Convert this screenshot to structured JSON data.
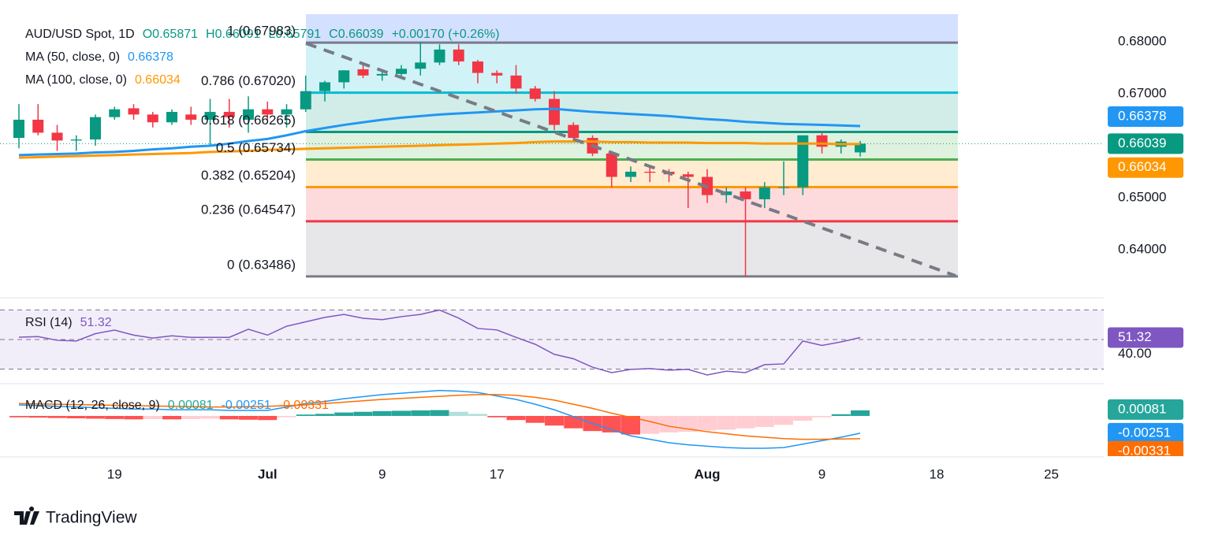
{
  "chart_data": {
    "type": "candlestick",
    "symbol": "AUD/USD Spot, 1D",
    "ohlc_header": {
      "o_label": "O",
      "open": "0.65871",
      "h_label": "H",
      "high": "0.66091",
      "l_label": "L",
      "low": "0.65791",
      "c_label": "C",
      "close": 0.66039,
      "change": "+0.00170 (+0.26%)"
    },
    "colors": {
      "up": "#089981",
      "down": "#f23645"
    },
    "xlim": [
      -0.99,
      56.74
    ],
    "xticks": [
      {
        "value": 5,
        "label": "19"
      },
      {
        "value": 13,
        "label": "Jul"
      },
      {
        "value": 19,
        "label": "9"
      },
      {
        "value": 25,
        "label": "17"
      },
      {
        "value": 36,
        "label": "Aug"
      },
      {
        "value": 42,
        "label": "9"
      },
      {
        "value": 48,
        "label": "18"
      },
      {
        "value": 54,
        "label": "25"
      }
    ],
    "ylim": [
      0.6312,
      0.6853
    ],
    "yticks": [
      {
        "value": 0.68,
        "label": "0.68000"
      },
      {
        "value": 0.67,
        "label": "0.67000"
      },
      {
        "value": 0.65,
        "label": "0.65000"
      },
      {
        "value": 0.64,
        "label": "0.64000"
      }
    ],
    "open": [
      0.6615,
      0.665,
      0.6625,
      0.661,
      0.6612,
      0.6655,
      0.6672,
      0.666,
      0.6645,
      0.666,
      0.665,
      0.6665,
      0.665,
      0.667,
      0.666,
      0.667,
      0.6705,
      0.6722,
      0.6747,
      0.6735,
      0.6738,
      0.6748,
      0.676,
      0.6785,
      0.6762,
      0.674,
      0.6735,
      0.671,
      0.669,
      0.664,
      0.6615,
      0.6585,
      0.654,
      0.655,
      0.655,
      0.6545,
      0.654,
      0.6505,
      0.6512,
      0.6497,
      0.652,
      0.652,
      0.662,
      0.6598,
      0.65871
    ],
    "high": [
      0.668,
      0.668,
      0.664,
      0.662,
      0.666,
      0.6675,
      0.668,
      0.6665,
      0.667,
      0.6675,
      0.669,
      0.669,
      0.6695,
      0.6685,
      0.668,
      0.6735,
      0.6725,
      0.6745,
      0.676,
      0.6745,
      0.6755,
      0.68,
      0.6795,
      0.6795,
      0.6765,
      0.6745,
      0.6755,
      0.6715,
      0.6705,
      0.6645,
      0.662,
      0.659,
      0.656,
      0.656,
      0.6555,
      0.655,
      0.6555,
      0.652,
      0.652,
      0.653,
      0.657,
      0.662,
      0.6625,
      0.6612,
      0.66091
    ],
    "low": [
      0.6595,
      0.662,
      0.659,
      0.659,
      0.66,
      0.665,
      0.665,
      0.6635,
      0.664,
      0.664,
      0.66,
      0.6635,
      0.6625,
      0.665,
      0.6635,
      0.6665,
      0.6685,
      0.671,
      0.673,
      0.6725,
      0.673,
      0.6735,
      0.6755,
      0.6755,
      0.672,
      0.672,
      0.67,
      0.6685,
      0.663,
      0.661,
      0.658,
      0.652,
      0.653,
      0.653,
      0.653,
      0.648,
      0.649,
      0.649,
      0.6349,
      0.648,
      0.6505,
      0.6505,
      0.6585,
      0.6585,
      0.65791
    ],
    "close": [
      0.665,
      0.6625,
      0.661,
      0.6612,
      0.6655,
      0.667,
      0.666,
      0.6645,
      0.6665,
      0.665,
      0.6665,
      0.6655,
      0.667,
      0.666,
      0.667,
      0.6705,
      0.6722,
      0.6745,
      0.6735,
      0.6738,
      0.6748,
      0.676,
      0.6785,
      0.6762,
      0.674,
      0.6735,
      0.671,
      0.669,
      0.664,
      0.6615,
      0.6585,
      0.654,
      0.655,
      0.6548,
      0.6545,
      0.654,
      0.6505,
      0.6512,
      0.6497,
      0.652,
      0.652,
      0.662,
      0.6598,
      0.6608,
      0.66039
    ],
    "series": [
      {
        "name": "MA (50, close, 0)",
        "color": "#2196f3",
        "values": [
          0.6582,
          0.6583,
          0.6584,
          0.6585,
          0.6587,
          0.6588,
          0.659,
          0.6593,
          0.6595,
          0.6598,
          0.66,
          0.6604,
          0.6609,
          0.6613,
          0.662,
          0.6628,
          0.6634,
          0.664,
          0.6645,
          0.665,
          0.6654,
          0.6657,
          0.666,
          0.6662,
          0.6664,
          0.6666,
          0.6668,
          0.667,
          0.6671,
          0.6668,
          0.6665,
          0.6663,
          0.6661,
          0.6659,
          0.6657,
          0.6654,
          0.6651,
          0.6649,
          0.6646,
          0.6644,
          0.6642,
          0.6641,
          0.664,
          0.6639,
          0.66378
        ]
      },
      {
        "name": "MA (100, close, 0)",
        "color": "#ff9800",
        "values": [
          0.6577,
          0.6578,
          0.6579,
          0.658,
          0.6581,
          0.6582,
          0.6583,
          0.6584,
          0.6585,
          0.6586,
          0.6588,
          0.6589,
          0.659,
          0.6592,
          0.6593,
          0.6594,
          0.6595,
          0.6596,
          0.6597,
          0.6598,
          0.6599,
          0.66,
          0.6601,
          0.6602,
          0.6603,
          0.6604,
          0.6605,
          0.6607,
          0.6608,
          0.6608,
          0.6608,
          0.6607,
          0.6607,
          0.6606,
          0.6606,
          0.6606,
          0.6605,
          0.6605,
          0.6605,
          0.6604,
          0.6604,
          0.6604,
          0.6604,
          0.6603,
          0.66034
        ]
      }
    ],
    "fib": [
      {
        "label": "1 (0.67983)",
        "value": 0.67983,
        "color": "#787b86"
      },
      {
        "label": "0.786 (0.67020)",
        "value": 0.6702,
        "color": "#00bcd4"
      },
      {
        "label": "0.618 (0.66265)",
        "value": 0.66265,
        "color": "#089981"
      },
      {
        "label": "0.5 (0.65734)",
        "value": 0.65734,
        "color": "#4caf50"
      },
      {
        "label": "0.382 (0.65204)",
        "value": 0.65204,
        "color": "#ff9800"
      },
      {
        "label": "0.236 (0.64547)",
        "value": 0.64547,
        "color": "#f23645"
      },
      {
        "label": "0 (0.63486)",
        "value": 0.63486,
        "color": "#787b86"
      }
    ],
    "rsi": {
      "name": "RSI (14)",
      "color": "#7e57c2",
      "ylim": [
        21.2,
        77.2
      ],
      "levels": [
        70,
        50,
        30
      ],
      "yticks": [
        {
          "value": 40,
          "label": "40.00"
        }
      ],
      "values": [
        51.6,
        52,
        49.5,
        49,
        54,
        56.4,
        53,
        51,
        52.5,
        51.5,
        51.5,
        51.5,
        57,
        53,
        59,
        62,
        65,
        67,
        64.4,
        63.5,
        65.5,
        67,
        70,
        64.5,
        57.5,
        56.5,
        51.5,
        46.8,
        40,
        37,
        31.3,
        27.6,
        29.8,
        30.3,
        29.3,
        29.8,
        26,
        28.6,
        27.6,
        33,
        33.5,
        49,
        46,
        48.4,
        51.32
      ]
    },
    "macd": {
      "name": "MACD (12, 26, close, 9)",
      "ylim": [
        -0.00573,
        0.00435
      ],
      "hist_colors": {
        "up_grow": "#26a69a",
        "up_fall": "#b2dfdb",
        "down_grow": "#ff5252",
        "down_fall": "#ffcdd2"
      },
      "histogram": [
        -0.0002,
        -0.00025,
        -0.0003,
        -0.00035,
        -0.0004,
        -0.00045,
        -0.0005,
        -0.00045,
        -0.0005,
        -0.00045,
        -0.0004,
        -0.0005,
        -0.00055,
        -0.0006,
        -0.0002,
        0.0002,
        0.0003,
        0.0005,
        0.0006,
        0.0007,
        0.00075,
        0.0008,
        0.00085,
        0.0006,
        0.0003,
        -0.0002,
        -0.0006,
        -0.001,
        -0.0014,
        -0.0018,
        -0.0022,
        -0.0024,
        -0.0027,
        -0.0026,
        -0.0024,
        -0.0023,
        -0.0021,
        -0.002,
        -0.0018,
        -0.0016,
        -0.0013,
        -0.0007,
        -0.0002,
        0.00025,
        0.00081
      ],
      "series": [
        {
          "color": "#2196f3",
          "values": [
            0.0016,
            0.0015,
            0.0014,
            0.0013,
            0.0012,
            0.0011,
            0.001,
            0.001,
            0.0009,
            0.0009,
            0.0009,
            0.0008,
            0.0008,
            0.0008,
            0.0013,
            0.0018,
            0.0021,
            0.0025,
            0.0028,
            0.0031,
            0.0033,
            0.0035,
            0.0037,
            0.0036,
            0.0034,
            0.0029,
            0.0024,
            0.0017,
            0.0009,
            -0.0001,
            -0.0011,
            -0.002,
            -0.0029,
            -0.0034,
            -0.0039,
            -0.0042,
            -0.0044,
            -0.0046,
            -0.0047,
            -0.0047,
            -0.0046,
            -0.0041,
            -0.0036,
            -0.0031,
            -0.00251
          ]
        },
        {
          "color": "#ff6d00",
          "values": [
            0.0018,
            0.00175,
            0.0017,
            0.00165,
            0.0016,
            0.00155,
            0.0015,
            0.00145,
            0.0014,
            0.00135,
            0.0013,
            0.0013,
            0.00135,
            0.0014,
            0.0015,
            0.0016,
            0.0018,
            0.002,
            0.0022,
            0.0024,
            0.00255,
            0.0027,
            0.00285,
            0.003,
            0.0031,
            0.0031,
            0.003,
            0.0027,
            0.0023,
            0.0017,
            0.0011,
            0.0004,
            -0.0002,
            -0.0008,
            -0.0015,
            -0.0019,
            -0.0023,
            -0.0026,
            -0.0029,
            -0.0031,
            -0.0033,
            -0.0034,
            -0.0034,
            -0.00335,
            -0.00331
          ]
        }
      ]
    },
    "brand": "TradingView"
  }
}
